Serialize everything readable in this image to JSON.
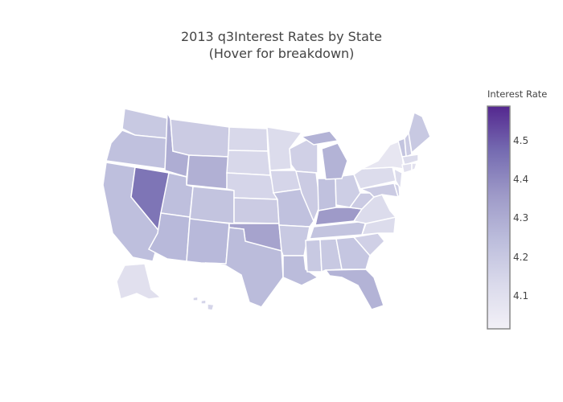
{
  "title_line1": "2013 q3Interest Rates by State",
  "title_line2": "(Hover for breakdown)",
  "colorbar": {
    "title": "Interest Rate",
    "ticks": [
      "4.1",
      "4.2",
      "4.3",
      "4.4",
      "4.5"
    ],
    "range": [
      4.017,
      4.59
    ],
    "colorscale": [
      "#f2f0f7",
      "#dadaeb",
      "#bcbddc",
      "#9e9ac8",
      "#756bb1",
      "#54278f"
    ]
  },
  "chart_data": {
    "type": "choropleth",
    "locationmode": "USA-states",
    "scope": "usa",
    "border_color": "#ffffff",
    "values": {
      "WA": 4.2,
      "OR": 4.23,
      "CA": 4.24,
      "NV": 4.45,
      "ID": 4.3,
      "MT": 4.19,
      "WY": 4.29,
      "UT": 4.24,
      "CO": 4.22,
      "AZ": 4.26,
      "NM": 4.26,
      "ND": 4.14,
      "SD": 4.14,
      "NE": 4.15,
      "KS": 4.19,
      "OK": 4.33,
      "TX": 4.25,
      "MN": 4.12,
      "IA": 4.15,
      "MO": 4.23,
      "AR": 4.2,
      "LA": 4.25,
      "WI": 4.17,
      "IL": 4.19,
      "IN": 4.23,
      "OH": 4.18,
      "MI": 4.28,
      "KY": 4.36,
      "TN": 4.22,
      "MS": 4.2,
      "AL": 4.2,
      "GA": 4.21,
      "FL": 4.28,
      "SC": 4.17,
      "NC": 4.12,
      "VA": 4.12,
      "WV": 4.19,
      "PA": 4.12,
      "NY": 4.07,
      "MD": 4.19,
      "DE": 4.17,
      "NJ": 4.12,
      "VT": 4.22,
      "NH": 4.19,
      "ME": 4.2,
      "MA": 4.12,
      "CT": 4.1,
      "RI": 4.1,
      "AK": 4.1,
      "HI": 4.15
    }
  }
}
